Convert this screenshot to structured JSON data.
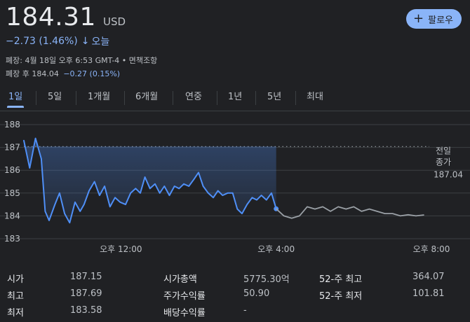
{
  "quote": {
    "price": "184.31",
    "currency": "USD",
    "change": "−2.73 (1.46%)",
    "change_arrow": "↓",
    "period": "오늘",
    "close_info": "폐장: 4월 18일 오후 6:53 GMT-4 • 면책조항",
    "after_hours_label": "폐장 후 184.04",
    "after_hours_change": "−0.27 (0.15%)",
    "accent_color": "#8ab4f8"
  },
  "follow_button": {
    "icon": "plus-icon",
    "label": "팔로우"
  },
  "tabs": [
    {
      "label": "1일",
      "active": true
    },
    {
      "label": "5일",
      "active": false
    },
    {
      "label": "1개월",
      "active": false
    },
    {
      "label": "6개월",
      "active": false
    },
    {
      "label": "연중",
      "active": false
    },
    {
      "label": "1년",
      "active": false
    },
    {
      "label": "5년",
      "active": false
    },
    {
      "label": "최대",
      "active": false
    }
  ],
  "chart_data": {
    "type": "line",
    "y_ticks": [
      "188",
      "187",
      "186",
      "185",
      "184",
      "183"
    ],
    "ylim": [
      183,
      188
    ],
    "x_ticks": [
      "오후 12:00",
      "오후 4:00",
      "오후 8:00"
    ],
    "x_tick_hours": [
      12,
      16,
      20
    ],
    "xlim": [
      9.5,
      20
    ],
    "previous_close_label_1": "전일",
    "previous_close_label_2": "종가",
    "previous_close": "187.04",
    "previous_close_value": 187.04,
    "series": [
      {
        "session": "regular",
        "color": "#4f8ff7",
        "x": [
          9.5,
          9.65,
          9.8,
          9.95,
          10.05,
          10.15,
          10.3,
          10.42,
          10.55,
          10.68,
          10.82,
          10.95,
          11.05,
          11.18,
          11.32,
          11.45,
          11.58,
          11.72,
          11.85,
          11.98,
          12.12,
          12.25,
          12.38,
          12.5,
          12.62,
          12.75,
          12.88,
          13.0,
          13.12,
          13.25,
          13.38,
          13.5,
          13.62,
          13.75,
          13.88,
          14.0,
          14.12,
          14.25,
          14.38,
          14.5,
          14.62,
          14.75,
          14.88,
          15.0,
          15.12,
          15.25,
          15.38,
          15.5,
          15.62,
          15.75,
          15.88,
          16.0
        ],
        "y": [
          187.3,
          186.1,
          187.4,
          186.5,
          184.2,
          183.8,
          184.5,
          185.0,
          184.1,
          183.7,
          184.6,
          184.2,
          184.5,
          185.1,
          185.5,
          184.9,
          185.3,
          184.4,
          184.8,
          184.6,
          184.5,
          185.0,
          185.2,
          185.0,
          185.7,
          185.2,
          185.4,
          185.0,
          185.3,
          184.9,
          185.3,
          185.2,
          185.4,
          185.3,
          185.6,
          185.9,
          185.3,
          185.0,
          184.8,
          185.1,
          184.9,
          185.0,
          185.0,
          184.3,
          184.1,
          184.5,
          184.8,
          184.7,
          184.9,
          184.7,
          185.0,
          184.31
        ]
      },
      {
        "session": "after-hours",
        "color": "#9aa0a6",
        "x": [
          16.0,
          16.2,
          16.4,
          16.6,
          16.8,
          17.0,
          17.2,
          17.4,
          17.6,
          17.8,
          18.0,
          18.2,
          18.4,
          18.6,
          18.8,
          19.0,
          19.2,
          19.4,
          19.6,
          19.8
        ],
        "y": [
          184.31,
          184.0,
          183.9,
          184.0,
          184.4,
          184.3,
          184.4,
          184.2,
          184.4,
          184.3,
          184.4,
          184.2,
          184.3,
          184.2,
          184.1,
          184.1,
          184.0,
          184.05,
          184.0,
          184.04
        ]
      }
    ]
  },
  "stats": [
    {
      "label": "시가",
      "value": "187.15"
    },
    {
      "label": "최고",
      "value": "187.69"
    },
    {
      "label": "최저",
      "value": "183.58"
    },
    {
      "label": "시가총액",
      "value": "5775.30억"
    },
    {
      "label": "주가수익률",
      "value": "50.90"
    },
    {
      "label": "배당수익률",
      "value": "-"
    },
    {
      "label": "52-주 최고",
      "value": "364.07"
    },
    {
      "label": "52-주 최저",
      "value": "101.81"
    }
  ]
}
